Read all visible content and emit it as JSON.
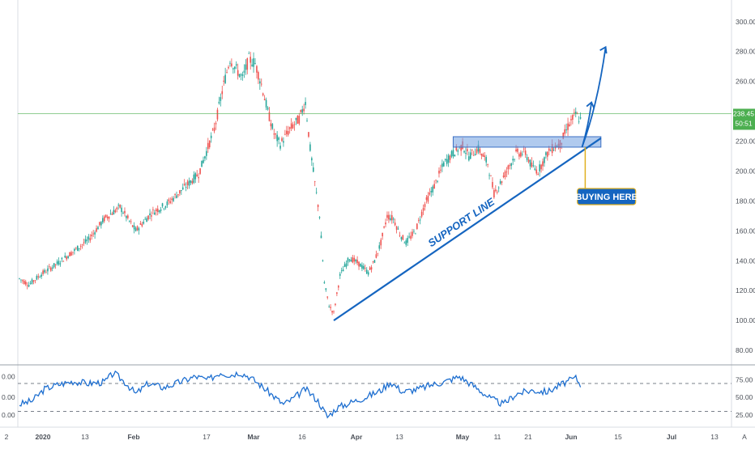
{
  "chart_data": {
    "type": "candlestick",
    "price_axis": {
      "ticks": [
        "300.00",
        "280.00",
        "260.00",
        "240.00",
        "220.00",
        "200.00",
        "180.00",
        "160.00",
        "140.00",
        "120.00",
        "100.00",
        "80.00"
      ],
      "tick_values": [
        300,
        280,
        260,
        240,
        220,
        200,
        180,
        160,
        140,
        120,
        100,
        80
      ],
      "ylim": [
        73,
        308
      ]
    },
    "last_price": {
      "label": "238.45",
      "value": 238.45,
      "timer": "50:51"
    },
    "time_axis": {
      "labels": [
        "2",
        "2020",
        "13",
        "Feb",
        "17",
        "Mar",
        "16",
        "Apr",
        "13",
        "May",
        "11",
        "21",
        "Jun",
        "15",
        "Jul",
        "13",
        "A"
      ],
      "bold": [
        "2020",
        "Feb",
        "Mar",
        "Apr",
        "May",
        "Jun",
        "Jul"
      ]
    },
    "price_anchors": [
      [
        0,
        128
      ],
      [
        6,
        124
      ],
      [
        14,
        131
      ],
      [
        24,
        138
      ],
      [
        34,
        146
      ],
      [
        44,
        154
      ],
      [
        54,
        168
      ],
      [
        64,
        176
      ],
      [
        74,
        160
      ],
      [
        84,
        172
      ],
      [
        94,
        178
      ],
      [
        104,
        188
      ],
      [
        114,
        198
      ],
      [
        124,
        228
      ],
      [
        130,
        258
      ],
      [
        134,
        275
      ],
      [
        138,
        268
      ],
      [
        142,
        262
      ],
      [
        146,
        275
      ],
      [
        150,
        272
      ],
      [
        154,
        258
      ],
      [
        158,
        240
      ],
      [
        162,
        225
      ],
      [
        166,
        218
      ],
      [
        172,
        228
      ],
      [
        178,
        235
      ],
      [
        182,
        246
      ],
      [
        185,
        215
      ],
      [
        188,
        192
      ],
      [
        191,
        170
      ],
      [
        194,
        125
      ],
      [
        197,
        110
      ],
      [
        200,
        105
      ],
      [
        204,
        130
      ],
      [
        210,
        142
      ],
      [
        216,
        138
      ],
      [
        222,
        132
      ],
      [
        226,
        140
      ],
      [
        230,
        152
      ],
      [
        234,
        170
      ],
      [
        238,
        168
      ],
      [
        242,
        158
      ],
      [
        246,
        152
      ],
      [
        252,
        160
      ],
      [
        258,
        178
      ],
      [
        264,
        190
      ],
      [
        270,
        205
      ],
      [
        276,
        212
      ],
      [
        282,
        217
      ],
      [
        286,
        210
      ],
      [
        292,
        215
      ],
      [
        298,
        205
      ],
      [
        302,
        185
      ],
      [
        306,
        192
      ],
      [
        310,
        200
      ],
      [
        316,
        212
      ],
      [
        322,
        212
      ],
      [
        326,
        203
      ],
      [
        330,
        200
      ],
      [
        336,
        212
      ],
      [
        340,
        216
      ],
      [
        344,
        218
      ],
      [
        350,
        232
      ],
      [
        354,
        238
      ],
      [
        357,
        234
      ]
    ],
    "rsi": {
      "ticks": [
        "0.00",
        "0.00",
        "0.00"
      ],
      "right_ticks": [
        "75.00",
        "50.00",
        "25.00"
      ],
      "right_tick_values": [
        75,
        50,
        25
      ],
      "overbought": 70,
      "oversold": 30,
      "ylim": [
        12,
        92
      ],
      "values_anchors": [
        [
          0,
          40
        ],
        [
          8,
          45
        ],
        [
          16,
          62
        ],
        [
          24,
          68
        ],
        [
          34,
          73
        ],
        [
          44,
          70
        ],
        [
          54,
          72
        ],
        [
          60,
          85
        ],
        [
          68,
          70
        ],
        [
          74,
          55
        ],
        [
          82,
          70
        ],
        [
          92,
          64
        ],
        [
          102,
          72
        ],
        [
          112,
          80
        ],
        [
          120,
          75
        ],
        [
          128,
          86
        ],
        [
          134,
          82
        ],
        [
          140,
          86
        ],
        [
          146,
          80
        ],
        [
          152,
          70
        ],
        [
          160,
          55
        ],
        [
          168,
          40
        ],
        [
          174,
          48
        ],
        [
          182,
          62
        ],
        [
          190,
          45
        ],
        [
          196,
          22
        ],
        [
          202,
          35
        ],
        [
          210,
          42
        ],
        [
          220,
          50
        ],
        [
          230,
          60
        ],
        [
          236,
          72
        ],
        [
          244,
          58
        ],
        [
          254,
          62
        ],
        [
          262,
          68
        ],
        [
          270,
          72
        ],
        [
          280,
          80
        ],
        [
          290,
          65
        ],
        [
          300,
          48
        ],
        [
          308,
          40
        ],
        [
          316,
          55
        ],
        [
          326,
          60
        ],
        [
          336,
          58
        ],
        [
          346,
          70
        ],
        [
          354,
          78
        ],
        [
          357,
          68
        ]
      ]
    },
    "annotations": {
      "support_line": "SUPPORT LINE",
      "buy_label": "BUYING HERE",
      "zone": {
        "low": 216,
        "high": 223
      },
      "support_from": [
        200,
        100
      ],
      "support_to": [
        370,
        222
      ]
    },
    "colors": {
      "up": "#26a69a",
      "down": "#ef5350",
      "accent": "#1565c0",
      "zone": "#6f9fe0",
      "rsi": "#1e6fd0",
      "price_line": "#4caf50"
    }
  }
}
